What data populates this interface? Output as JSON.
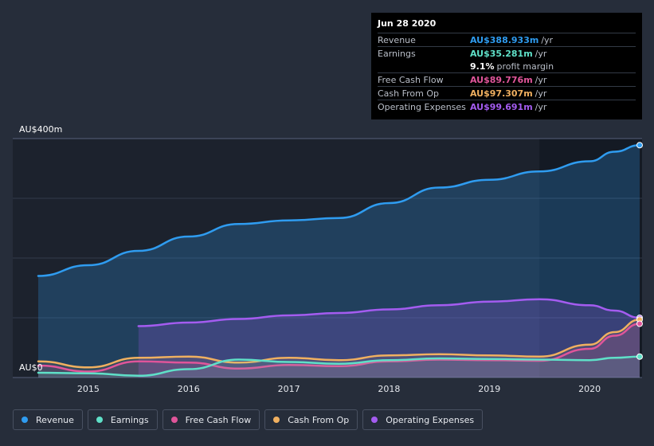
{
  "tooltip": {
    "date": "Jun 28 2020",
    "rows": [
      {
        "name": "Revenue",
        "value": "AU$388.933m",
        "unit": "/yr",
        "color": "#2f9cf0"
      },
      {
        "name": "Earnings",
        "value": "AU$35.281m",
        "unit": "/yr",
        "color": "#5fe0c8"
      },
      {
        "name": "",
        "value": "9.1%",
        "unit": "profit margin",
        "color": "#ffffff"
      },
      {
        "name": "Free Cash Flow",
        "value": "AU$89.776m",
        "unit": "/yr",
        "color": "#e0559a"
      },
      {
        "name": "Cash From Op",
        "value": "AU$97.307m",
        "unit": "/yr",
        "color": "#f0b060"
      },
      {
        "name": "Operating Expenses",
        "value": "AU$99.691m",
        "unit": "/yr",
        "color": "#a45cf0"
      }
    ]
  },
  "legend": [
    {
      "label": "Revenue",
      "color": "#2f9cf0"
    },
    {
      "label": "Earnings",
      "color": "#5fe0c8"
    },
    {
      "label": "Free Cash Flow",
      "color": "#e0559a"
    },
    {
      "label": "Cash From Op",
      "color": "#f0b060"
    },
    {
      "label": "Operating Expenses",
      "color": "#a45cf0"
    }
  ],
  "chart_data": {
    "type": "area",
    "ylabel_top": "AU$400m",
    "ylabel_bottom": "AU$0",
    "ylim": [
      0,
      400
    ],
    "x_ticks": [
      2015,
      2016,
      2017,
      2018,
      2019,
      2020
    ],
    "xlim": [
      2014.5,
      2020.5
    ],
    "series": [
      {
        "name": "Revenue",
        "color": "#2f9cf0",
        "x": [
          2014.5,
          2015.0,
          2015.5,
          2016.0,
          2016.5,
          2017.0,
          2017.5,
          2018.0,
          2018.5,
          2019.0,
          2019.5,
          2020.0,
          2020.25,
          2020.5
        ],
        "values": [
          170,
          188,
          212,
          236,
          257,
          263,
          267,
          292,
          318,
          331,
          345,
          362,
          378,
          389
        ]
      },
      {
        "name": "Earnings",
        "color": "#5fe0c8",
        "x": [
          2014.5,
          2015.0,
          2015.5,
          2016.0,
          2016.5,
          2017.0,
          2017.5,
          2018.0,
          2018.5,
          2019.0,
          2019.5,
          2020.0,
          2020.25,
          2020.5
        ],
        "values": [
          8,
          7,
          3,
          14,
          30,
          26,
          23,
          29,
          32,
          31,
          30,
          29,
          33,
          35
        ]
      },
      {
        "name": "Free Cash Flow",
        "color": "#e0559a",
        "x": [
          2014.5,
          2015.0,
          2015.5,
          2016.0,
          2016.5,
          2017.0,
          2017.5,
          2018.0,
          2018.5,
          2019.0,
          2019.5,
          2020.0,
          2020.25,
          2020.5
        ],
        "values": [
          20,
          10,
          27,
          25,
          15,
          21,
          19,
          27,
          30,
          29,
          28,
          48,
          70,
          90
        ]
      },
      {
        "name": "Cash From Op",
        "color": "#f0b060",
        "x": [
          2014.5,
          2015.0,
          2015.5,
          2016.0,
          2016.5,
          2017.0,
          2017.5,
          2018.0,
          2018.5,
          2019.0,
          2019.5,
          2020.0,
          2020.25,
          2020.5
        ],
        "values": [
          27,
          17,
          33,
          35,
          25,
          33,
          29,
          37,
          39,
          37,
          35,
          55,
          76,
          97
        ]
      },
      {
        "name": "Operating Expenses",
        "color": "#a45cf0",
        "x": [
          2015.5,
          2016.0,
          2016.5,
          2017.0,
          2017.5,
          2018.0,
          2018.5,
          2019.0,
          2019.5,
          2020.0,
          2020.25,
          2020.5
        ],
        "values": [
          86,
          92,
          98,
          104,
          108,
          114,
          121,
          127,
          131,
          121,
          112,
          100
        ]
      }
    ],
    "grid": true,
    "legend_position": "bottom-left",
    "tooltip_position": "top-right"
  }
}
